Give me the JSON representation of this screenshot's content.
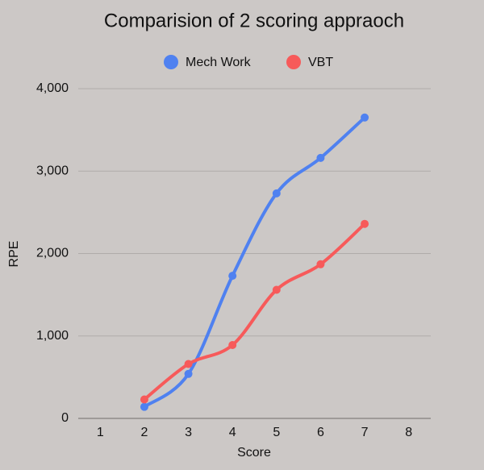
{
  "chart_data": {
    "type": "line",
    "title": "Comparision of 2 scoring appraoch",
    "x_label": "Score",
    "y_label": "RPE",
    "categories": [
      "1",
      "2",
      "3",
      "4",
      "5",
      "6",
      "7",
      "8"
    ],
    "series": [
      {
        "name": "Mech Work",
        "color": "#4f81f0",
        "values": [
          null,
          140,
          540,
          1730,
          2730,
          3160,
          3650,
          null
        ]
      },
      {
        "name": "VBT",
        "color": "#f75a5a",
        "values": [
          null,
          230,
          660,
          890,
          1560,
          1870,
          2360,
          null
        ]
      }
    ],
    "ylim": [
      0,
      4000
    ],
    "yticks": [
      0,
      {
        "value": 1000,
        "label": "1,000"
      },
      {
        "value": 2000,
        "label": "2,000"
      },
      {
        "value": 3000,
        "label": "3,000"
      },
      {
        "value": 4000,
        "label": "4,000"
      }
    ],
    "grid": true,
    "smooth": true,
    "legend": "top"
  }
}
